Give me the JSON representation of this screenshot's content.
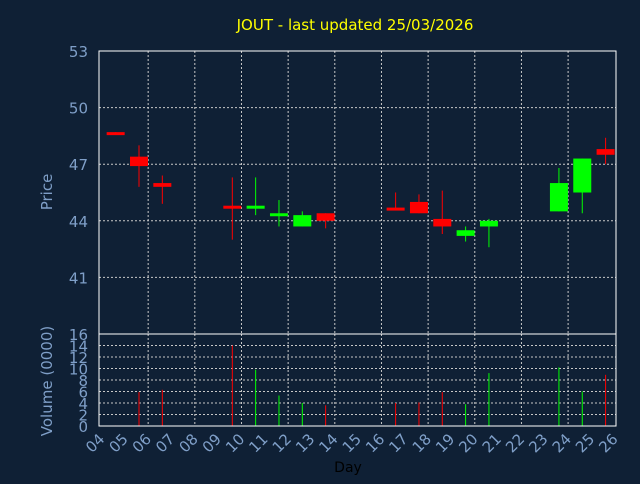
{
  "colors": {
    "background": "#0f2035",
    "title": "#ffff00",
    "axis_text": "#7f9fc8",
    "frame": "#ffffff",
    "grid": "#c8c8c8",
    "up": "#00ff00",
    "down": "#ff0000",
    "xlabel": "#000000"
  },
  "chart_data": [
    {
      "type": "candlestick",
      "title": "JOUT - last updated 25/03/2026",
      "ylabel": "Price",
      "ylim": [
        38,
        53
      ],
      "yticks": [
        "41",
        "44",
        "47",
        "50",
        "53"
      ],
      "grid": true,
      "categories": [
        "04",
        "05",
        "06",
        "07",
        "08",
        "09",
        "10",
        "11",
        "12",
        "13",
        "14",
        "15",
        "16",
        "17",
        "18",
        "19",
        "20",
        "21",
        "22",
        "23",
        "24",
        "25",
        "26"
      ],
      "candles": [
        {
          "x": "04",
          "open": 48.7,
          "high": 48.7,
          "low": 48.6,
          "close": 48.6
        },
        {
          "x": "05",
          "open": 47.4,
          "high": 48.0,
          "low": 45.8,
          "close": 46.9
        },
        {
          "x": "06",
          "open": 46.0,
          "high": 46.4,
          "low": 44.9,
          "close": 45.8
        },
        {
          "x": "09",
          "open": 44.8,
          "high": 46.3,
          "low": 43.0,
          "close": 44.7
        },
        {
          "x": "10",
          "open": 44.7,
          "high": 46.3,
          "low": 44.3,
          "close": 44.8
        },
        {
          "x": "11",
          "open": 44.3,
          "high": 45.1,
          "low": 43.7,
          "close": 44.4
        },
        {
          "x": "12",
          "open": 43.7,
          "high": 44.5,
          "low": 43.7,
          "close": 44.3
        },
        {
          "x": "13",
          "open": 44.4,
          "high": 44.4,
          "low": 43.6,
          "close": 44.0
        },
        {
          "x": "16",
          "open": 44.7,
          "high": 45.5,
          "low": 44.6,
          "close": 44.6
        },
        {
          "x": "17",
          "open": 45.0,
          "high": 45.4,
          "low": 44.4,
          "close": 44.4
        },
        {
          "x": "18",
          "open": 44.1,
          "high": 45.6,
          "low": 43.3,
          "close": 43.7
        },
        {
          "x": "19",
          "open": 43.2,
          "high": 43.7,
          "low": 42.9,
          "close": 43.5
        },
        {
          "x": "20",
          "open": 43.7,
          "high": 44.1,
          "low": 42.6,
          "close": 44.0
        },
        {
          "x": "23",
          "open": 44.5,
          "high": 46.8,
          "low": 44.5,
          "close": 46.0
        },
        {
          "x": "24",
          "open": 45.5,
          "high": 47.3,
          "low": 44.4,
          "close": 47.3
        },
        {
          "x": "25",
          "open": 47.8,
          "high": 48.4,
          "low": 47.0,
          "close": 47.5
        }
      ]
    },
    {
      "type": "bar",
      "ylabel": "Volume (0000)",
      "ylim": [
        0,
        16
      ],
      "yticks": [
        "0",
        "2",
        "4",
        "6",
        "8",
        "10",
        "12",
        "14",
        "16"
      ],
      "xlabel": "Day",
      "grid": true,
      "categories": [
        "04",
        "05",
        "06",
        "07",
        "08",
        "09",
        "10",
        "11",
        "12",
        "13",
        "14",
        "15",
        "16",
        "17",
        "18",
        "19",
        "20",
        "21",
        "22",
        "23",
        "24",
        "25",
        "26"
      ],
      "bars": [
        {
          "x": "04",
          "value": 0.1,
          "direction": "down"
        },
        {
          "x": "05",
          "value": 5.9,
          "direction": "down"
        },
        {
          "x": "06",
          "value": 6.3,
          "direction": "down"
        },
        {
          "x": "09",
          "value": 14.0,
          "direction": "down"
        },
        {
          "x": "10",
          "value": 9.8,
          "direction": "up"
        },
        {
          "x": "11",
          "value": 5.3,
          "direction": "up"
        },
        {
          "x": "12",
          "value": 4.0,
          "direction": "up"
        },
        {
          "x": "13",
          "value": 3.6,
          "direction": "down"
        },
        {
          "x": "16",
          "value": 4.0,
          "direction": "down"
        },
        {
          "x": "17",
          "value": 4.1,
          "direction": "down"
        },
        {
          "x": "18",
          "value": 5.9,
          "direction": "down"
        },
        {
          "x": "19",
          "value": 3.8,
          "direction": "up"
        },
        {
          "x": "20",
          "value": 9.2,
          "direction": "up"
        },
        {
          "x": "23",
          "value": 10.2,
          "direction": "up"
        },
        {
          "x": "24",
          "value": 6.0,
          "direction": "up"
        },
        {
          "x": "25",
          "value": 8.9,
          "direction": "down"
        }
      ]
    }
  ]
}
